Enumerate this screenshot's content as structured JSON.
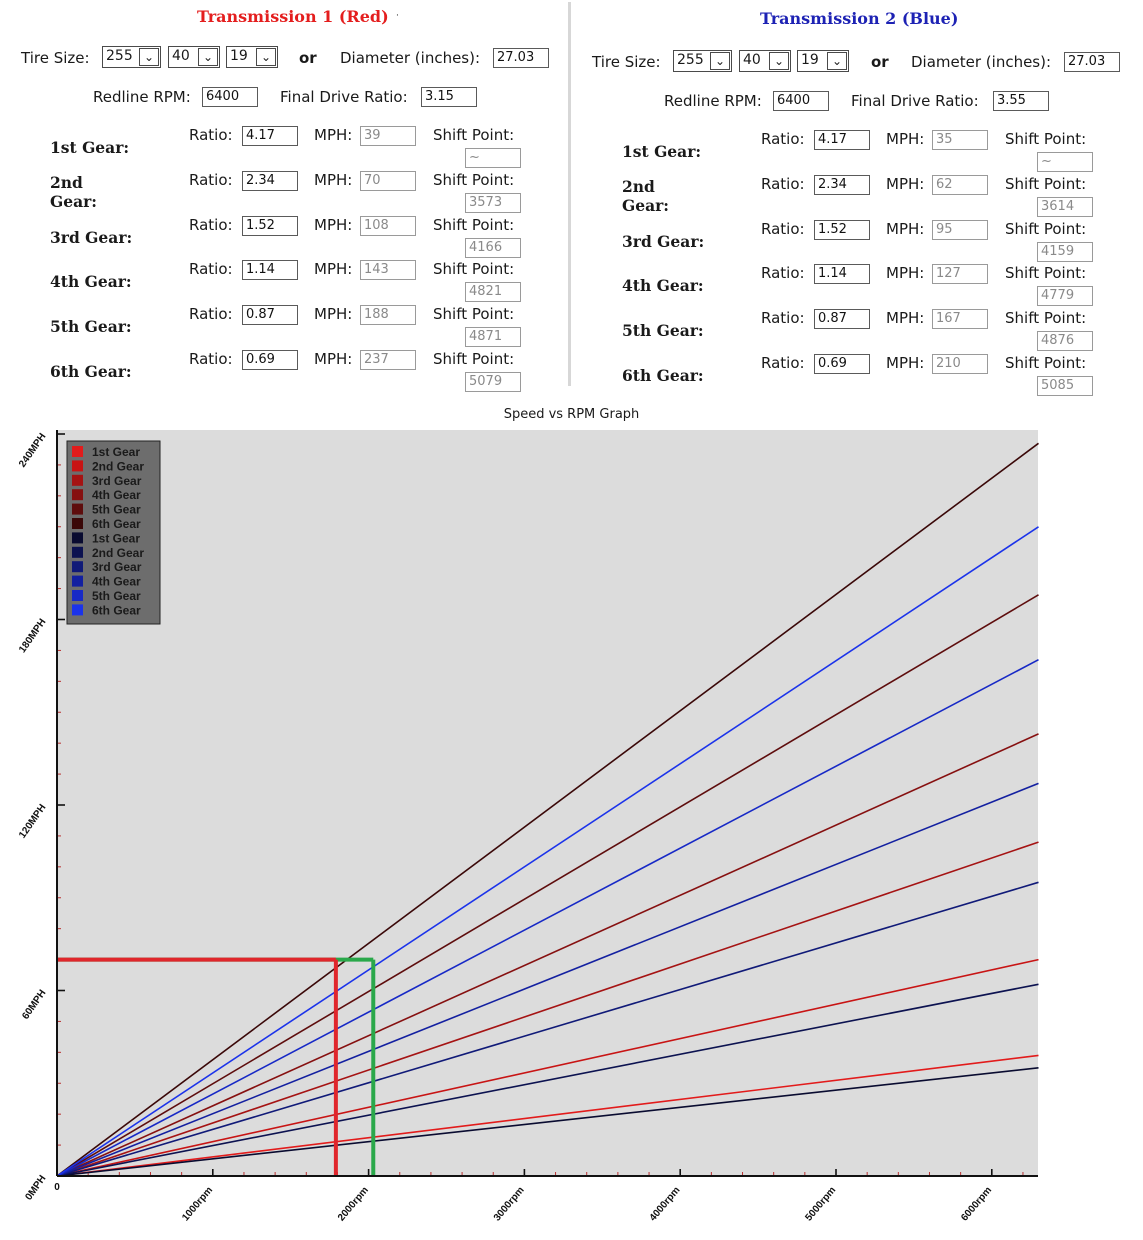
{
  "t1": {
    "title": "Transmission 1 (Red)",
    "tire_label": "Tire Size:",
    "width": "255",
    "aspect": "40",
    "rim": "19",
    "or": "or",
    "diameter_label": "Diameter (inches):",
    "diameter": "27.03",
    "redline_label": "Redline RPM:",
    "redline": "6400",
    "fdr_label": "Final Drive Ratio:",
    "fdr": "3.15",
    "gears": [
      {
        "label": "1st Gear:",
        "ratio_label": "Ratio:",
        "ratio": "4.17",
        "mph_label": "MPH:",
        "mph": "39",
        "shift_label": "Shift Point:",
        "shift": "~"
      },
      {
        "label": "2nd Gear:",
        "ratio_label": "Ratio:",
        "ratio": "2.34",
        "mph_label": "MPH:",
        "mph": "70",
        "shift_label": "Shift Point:",
        "shift": "3573"
      },
      {
        "label": "3rd Gear:",
        "ratio_label": "Ratio:",
        "ratio": "1.52",
        "mph_label": "MPH:",
        "mph": "108",
        "shift_label": "Shift Point:",
        "shift": "4166"
      },
      {
        "label": "4th Gear:",
        "ratio_label": "Ratio:",
        "ratio": "1.14",
        "mph_label": "MPH:",
        "mph": "143",
        "shift_label": "Shift Point:",
        "shift": "4821"
      },
      {
        "label": "5th Gear:",
        "ratio_label": "Ratio:",
        "ratio": "0.87",
        "mph_label": "MPH:",
        "mph": "188",
        "shift_label": "Shift Point:",
        "shift": "4871"
      },
      {
        "label": "6th Gear:",
        "ratio_label": "Ratio:",
        "ratio": "0.69",
        "mph_label": "MPH:",
        "mph": "237",
        "shift_label": "Shift Point:",
        "shift": "5079"
      }
    ]
  },
  "t2": {
    "title": "Transmission 2 (Blue)",
    "tire_label": "Tire Size:",
    "width": "255",
    "aspect": "40",
    "rim": "19",
    "or": "or",
    "diameter_label": "Diameter (inches):",
    "diameter": "27.03",
    "redline_label": "Redline RPM:",
    "redline": "6400",
    "fdr_label": "Final Drive Ratio:",
    "fdr": "3.55",
    "gears": [
      {
        "label": "1st Gear:",
        "ratio_label": "Ratio:",
        "ratio": "4.17",
        "mph_label": "MPH:",
        "mph": "35",
        "shift_label": "Shift Point:",
        "shift": "~"
      },
      {
        "label": "2nd Gear:",
        "ratio_label": "Ratio:",
        "ratio": "2.34",
        "mph_label": "MPH:",
        "mph": "62",
        "shift_label": "Shift Point:",
        "shift": "3614"
      },
      {
        "label": "3rd Gear:",
        "ratio_label": "Ratio:",
        "ratio": "1.52",
        "mph_label": "MPH:",
        "mph": "95",
        "shift_label": "Shift Point:",
        "shift": "4159"
      },
      {
        "label": "4th Gear:",
        "ratio_label": "Ratio:",
        "ratio": "1.14",
        "mph_label": "MPH:",
        "mph": "127",
        "shift_label": "Shift Point:",
        "shift": "4779"
      },
      {
        "label": "5th Gear:",
        "ratio_label": "Ratio:",
        "ratio": "0.87",
        "mph_label": "MPH:",
        "mph": "167",
        "shift_label": "Shift Point:",
        "shift": "4876"
      },
      {
        "label": "6th Gear:",
        "ratio_label": "Ratio:",
        "ratio": "0.69",
        "mph_label": "MPH:",
        "mph": "210",
        "shift_label": "Shift Point:",
        "shift": "5085"
      }
    ]
  },
  "colors": {
    "title1": "#e41e1e",
    "title2": "#1d22b4",
    "plot_bg": "#dcdcdc",
    "axis": "#111111",
    "tick": "#b83030",
    "legend_bg": "#6d6d6d",
    "red_marker": "#e0262c",
    "green_marker": "#2aa84a"
  },
  "chart_data": {
    "type": "line",
    "title": "Speed vs RPM Graph",
    "x_ticks": [
      "0",
      "1000rpm",
      "2000rpm",
      "3000rpm",
      "4000rpm",
      "5000rpm",
      "6000rpm"
    ],
    "y_ticks": [
      "0MPH",
      "60MPH",
      "120MPH",
      "180MPH",
      "240MPH"
    ],
    "xlim": [
      0,
      6300
    ],
    "ylim": [
      0,
      240
    ],
    "legend_position": "top-left",
    "series": [
      {
        "name": "1st Gear",
        "color": "#e21b1b",
        "x": [
          0,
          6300
        ],
        "y": [
          0,
          39
        ]
      },
      {
        "name": "2nd Gear",
        "color": "#c81414",
        "x": [
          0,
          6300
        ],
        "y": [
          0,
          70
        ]
      },
      {
        "name": "3rd Gear",
        "color": "#a51313",
        "x": [
          0,
          6300
        ],
        "y": [
          0,
          108
        ]
      },
      {
        "name": "4th Gear",
        "color": "#861010",
        "x": [
          0,
          6300
        ],
        "y": [
          0,
          143
        ]
      },
      {
        "name": "5th Gear",
        "color": "#5e0d0d",
        "x": [
          0,
          6300
        ],
        "y": [
          0,
          188
        ]
      },
      {
        "name": "6th Gear",
        "color": "#3a0808",
        "x": [
          0,
          6300
        ],
        "y": [
          0,
          237
        ]
      },
      {
        "name": "1st Gear",
        "color": "#090b30",
        "x": [
          0,
          6300
        ],
        "y": [
          0,
          35
        ]
      },
      {
        "name": "2nd Gear",
        "color": "#0c1250",
        "x": [
          0,
          6300
        ],
        "y": [
          0,
          62
        ]
      },
      {
        "name": "3rd Gear",
        "color": "#101a78",
        "x": [
          0,
          6300
        ],
        "y": [
          0,
          95
        ]
      },
      {
        "name": "4th Gear",
        "color": "#1320a0",
        "x": [
          0,
          6300
        ],
        "y": [
          0,
          127
        ]
      },
      {
        "name": "5th Gear",
        "color": "#1729c6",
        "x": [
          0,
          6300
        ],
        "y": [
          0,
          167
        ]
      },
      {
        "name": "6th Gear",
        "color": "#1b33ea",
        "x": [
          0,
          6300
        ],
        "y": [
          0,
          210
        ]
      }
    ],
    "markers": [
      {
        "color": "#e0262c",
        "rpm": 1790,
        "mph": 70
      },
      {
        "color": "#2aa84a",
        "rpm": 2030,
        "mph": 70
      }
    ]
  }
}
